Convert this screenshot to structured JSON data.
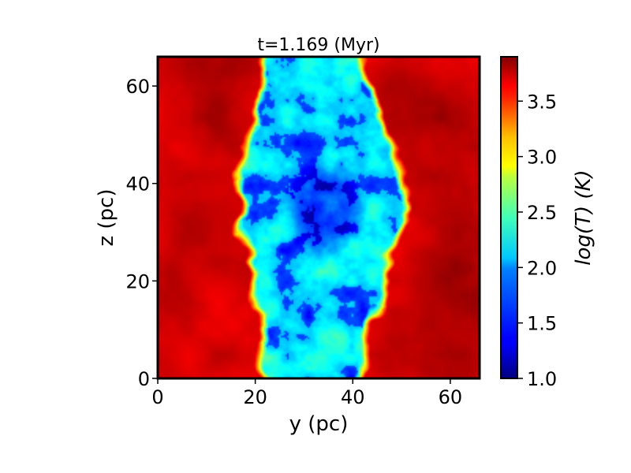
{
  "chart_data": {
    "type": "heatmap",
    "title": "t=1.169 (Myr)",
    "xlabel": "y (pc)",
    "ylabel": "z (pc)",
    "xlim": [
      0,
      66
    ],
    "ylim": [
      0,
      66
    ],
    "x_ticks": [
      0,
      20,
      40,
      60
    ],
    "y_ticks": [
      0,
      20,
      40,
      60
    ],
    "x_tick_labels": [
      "0",
      "20",
      "40",
      "60"
    ],
    "y_tick_labels": [
      "0",
      "20",
      "40",
      "60"
    ],
    "colorbar": {
      "label": "log(T) (K)",
      "colormap": "jet",
      "range": [
        1.0,
        3.9
      ],
      "ticks": [
        1.0,
        1.5,
        2.0,
        2.5,
        3.0,
        3.5
      ],
      "tick_labels": [
        "1.0",
        "1.5",
        "2.0",
        "2.5",
        "3.0",
        "3.5"
      ]
    },
    "field_description": {
      "background_logT": 3.7,
      "cloud_logT": 2.0,
      "cloud_core_logT": 1.4,
      "cloud_center": [
        33,
        33
      ],
      "cloud_extent_y": [
        14,
        49
      ],
      "cloud_extent_z": [
        0,
        66
      ]
    },
    "grid": false
  }
}
